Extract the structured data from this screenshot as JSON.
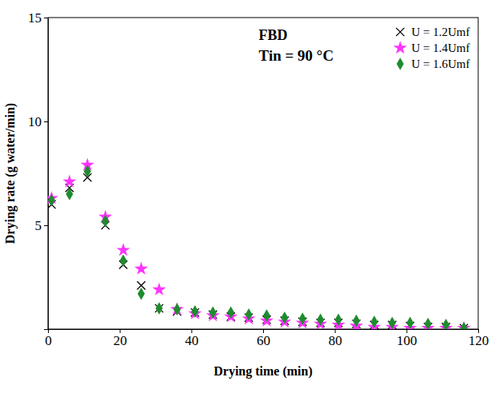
{
  "chart_data": {
    "type": "scatter",
    "x_label": "Drying time (min)",
    "y_label": "Drying rate (g water/min)",
    "annotations": [
      "FBD",
      "Tin = 90 °C"
    ],
    "x": [
      1,
      6,
      11,
      16,
      21,
      26,
      31,
      36,
      41,
      46,
      51,
      56,
      61,
      66,
      71,
      76,
      81,
      86,
      91,
      96,
      101,
      106,
      111,
      116
    ],
    "series": [
      {
        "name": "U = 1.2Umf",
        "color": "#000000",
        "marker": "x",
        "values": [
          6.0,
          6.8,
          7.3,
          5.0,
          3.1,
          2.1,
          1.0,
          0.85,
          0.8,
          0.7,
          0.6,
          0.55,
          0.45,
          0.4,
          0.35,
          0.3,
          0.3,
          0.25,
          0.2,
          0.2,
          0.15,
          0.1,
          0.1,
          0.05
        ]
      },
      {
        "name": "U = 1.4Umf",
        "color": "#ff33ff",
        "marker": "star",
        "values": [
          6.3,
          7.1,
          7.9,
          5.4,
          3.8,
          2.9,
          1.9,
          0.95,
          0.75,
          0.65,
          0.6,
          0.5,
          0.4,
          0.35,
          0.3,
          0.25,
          0.2,
          0.15,
          0.1,
          0.1,
          0.05,
          0.05,
          0.05,
          0.05
        ]
      },
      {
        "name": "U = 1.6Umf",
        "color": "#1e8c2e",
        "marker": "diamond",
        "values": [
          6.2,
          6.5,
          7.6,
          5.2,
          3.3,
          1.7,
          1.0,
          0.95,
          0.85,
          0.8,
          0.8,
          0.7,
          0.65,
          0.55,
          0.5,
          0.45,
          0.45,
          0.4,
          0.35,
          0.3,
          0.3,
          0.25,
          0.2,
          0.05
        ]
      }
    ],
    "xlim": [
      0,
      120
    ],
    "xticks": [
      0,
      20,
      40,
      60,
      80,
      100,
      120
    ],
    "ylim": [
      0,
      15
    ],
    "yticks": [
      5,
      10,
      15
    ],
    "grid": false,
    "legend": "top-right"
  }
}
